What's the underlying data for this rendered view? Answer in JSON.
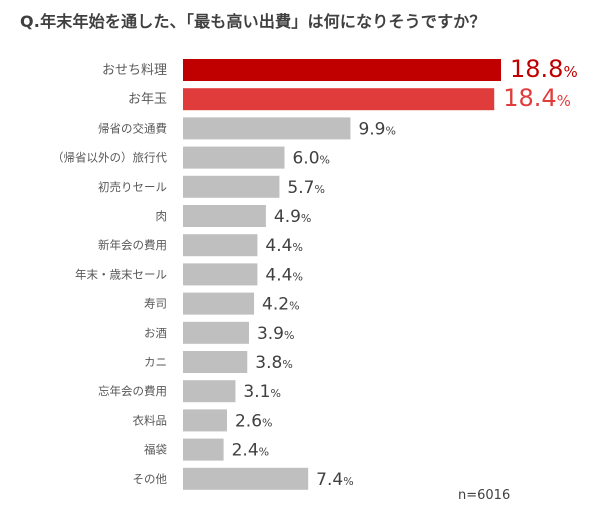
{
  "chart_data": {
    "type": "bar",
    "orientation": "horizontal",
    "title": "Q.年末年始を通した、「最も高い出費」は何になりそうですか？",
    "unit": "%",
    "categories": [
      "おせち料理",
      "お年玉",
      "帰省の交通費",
      "（帰省以外の）旅行代",
      "初売りセール",
      "肉",
      "新年会の費用",
      "年末・歳末セール",
      "寿司",
      "お酒",
      "カニ",
      "忘年会の費用",
      "衣料品",
      "福袋",
      "その他"
    ],
    "values": [
      18.8,
      18.4,
      9.9,
      6.0,
      5.7,
      4.9,
      4.4,
      4.4,
      4.2,
      3.9,
      3.8,
      3.1,
      2.6,
      2.4,
      7.4
    ],
    "value_labels": [
      "18.8",
      "18.4",
      "9.9",
      "6.0",
      "5.7",
      "4.9",
      "4.4",
      "4.4",
      "4.2",
      "3.9",
      "3.8",
      "3.1",
      "2.6",
      "2.4",
      "7.4"
    ],
    "colors": {
      "top1": "#c00000",
      "top2": "#e03c3c",
      "default": "#bfbfbf",
      "top1_label": "#c00000",
      "top2_label": "#e03c3c"
    },
    "note": "n=6016",
    "grid": false,
    "legend": "none"
  }
}
